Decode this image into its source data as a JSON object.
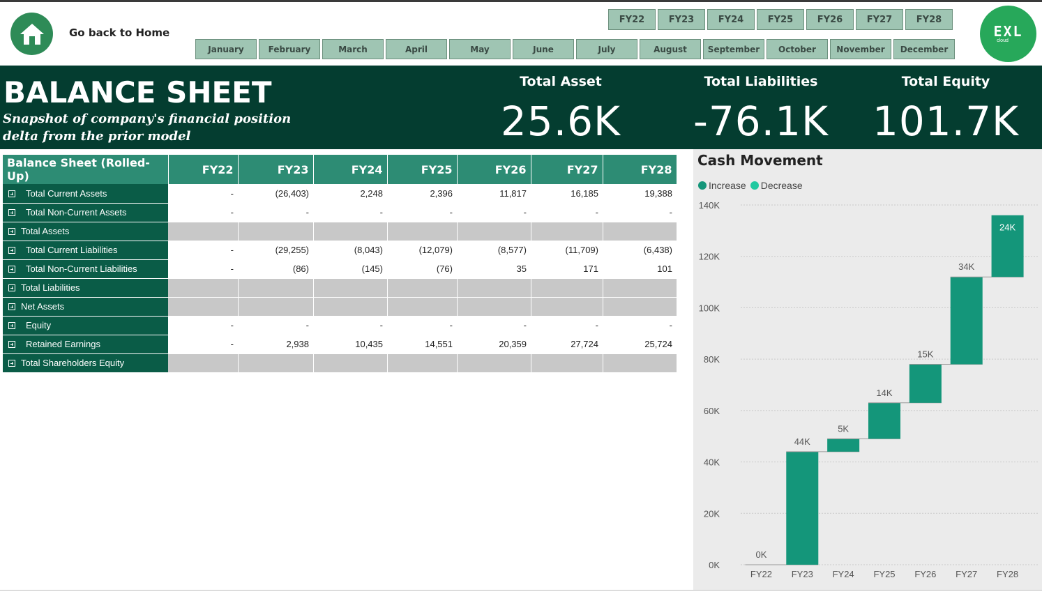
{
  "nav": {
    "home_label": "Go back to Home"
  },
  "fy_slicer": [
    "FY22",
    "FY23",
    "FY24",
    "FY25",
    "FY26",
    "FY27",
    "FY28"
  ],
  "month_slicer": [
    "January",
    "February",
    "March",
    "April",
    "May",
    "June",
    "July",
    "August",
    "September",
    "October",
    "November",
    "December"
  ],
  "logo": {
    "main": "EXL",
    "sub": "cloud"
  },
  "banner": {
    "title": "BALANCE SHEET",
    "subtitle": "Snapshot of company's financial position delta from the prior model"
  },
  "kpis": {
    "asset_label": "Total Asset",
    "asset_value": "25.6K",
    "liabilities_label": "Total Liabilities",
    "liabilities_value": "-76.1K",
    "equity_label": "Total Equity",
    "equity_value": "101.7K"
  },
  "table": {
    "header_label": "Balance Sheet (Rolled-Up)",
    "columns": [
      "FY22",
      "FY23",
      "FY24",
      "FY25",
      "FY26",
      "FY27",
      "FY28"
    ],
    "rows": [
      {
        "label": "Total Current Assets",
        "indent": true,
        "subtotal": false,
        "values": [
          "-",
          "(26,403)",
          "2,248",
          "2,396",
          "11,817",
          "16,185",
          "19,388"
        ]
      },
      {
        "label": "Total Non-Current Assets",
        "indent": true,
        "subtotal": false,
        "values": [
          "-",
          "-",
          "-",
          "-",
          "-",
          "-",
          "-"
        ]
      },
      {
        "label": "Total Assets",
        "indent": false,
        "subtotal": true,
        "values": [
          "",
          "",
          "",
          "",
          "",
          "",
          ""
        ]
      },
      {
        "label": "Total Current Liabilities",
        "indent": true,
        "subtotal": false,
        "values": [
          "-",
          "(29,255)",
          "(8,043)",
          "(12,079)",
          "(8,577)",
          "(11,709)",
          "(6,438)"
        ]
      },
      {
        "label": "Total Non-Current Liabilities",
        "indent": true,
        "subtotal": false,
        "values": [
          "-",
          "(86)",
          "(145)",
          "(76)",
          "35",
          "171",
          "101"
        ]
      },
      {
        "label": "Total Liabilities",
        "indent": false,
        "subtotal": true,
        "values": [
          "",
          "",
          "",
          "",
          "",
          "",
          ""
        ]
      },
      {
        "label": "Net Assets",
        "indent": false,
        "subtotal": true,
        "values": [
          "",
          "",
          "",
          "",
          "",
          "",
          ""
        ]
      },
      {
        "label": "Equity",
        "indent": true,
        "subtotal": false,
        "values": [
          "-",
          "-",
          "-",
          "-",
          "-",
          "-",
          "-"
        ]
      },
      {
        "label": "Retained Earnings",
        "indent": true,
        "subtotal": false,
        "values": [
          "-",
          "2,938",
          "10,435",
          "14,551",
          "20,359",
          "27,724",
          "25,724"
        ]
      },
      {
        "label": "Total Shareholders Equity",
        "indent": false,
        "subtotal": true,
        "values": [
          "",
          "",
          "",
          "",
          "",
          "",
          ""
        ]
      }
    ]
  },
  "colors": {
    "increase": "#14967a",
    "decrease": "#20c9a0"
  },
  "chart_data": {
    "type": "waterfall",
    "title": "Cash Movement",
    "legend": [
      "Increase",
      "Decrease"
    ],
    "legend_placement": "top-left",
    "categories": [
      "FY22",
      "FY23",
      "FY24",
      "FY25",
      "FY26",
      "FY27",
      "FY28"
    ],
    "values": [
      0,
      44,
      5,
      14,
      15,
      34,
      24
    ],
    "labels": [
      "0K",
      "44K",
      "5K",
      "14K",
      "15K",
      "34K",
      "24K"
    ],
    "bar_bottoms": [
      0,
      0,
      44,
      49,
      63,
      78,
      112
    ],
    "bar_tops": [
      0,
      44,
      49,
      63,
      78,
      112,
      136
    ],
    "unit": "K",
    "yticks": [
      "0K",
      "20K",
      "40K",
      "60K",
      "80K",
      "100K",
      "120K",
      "140K"
    ],
    "ylim": [
      0,
      140
    ],
    "grid": true
  }
}
